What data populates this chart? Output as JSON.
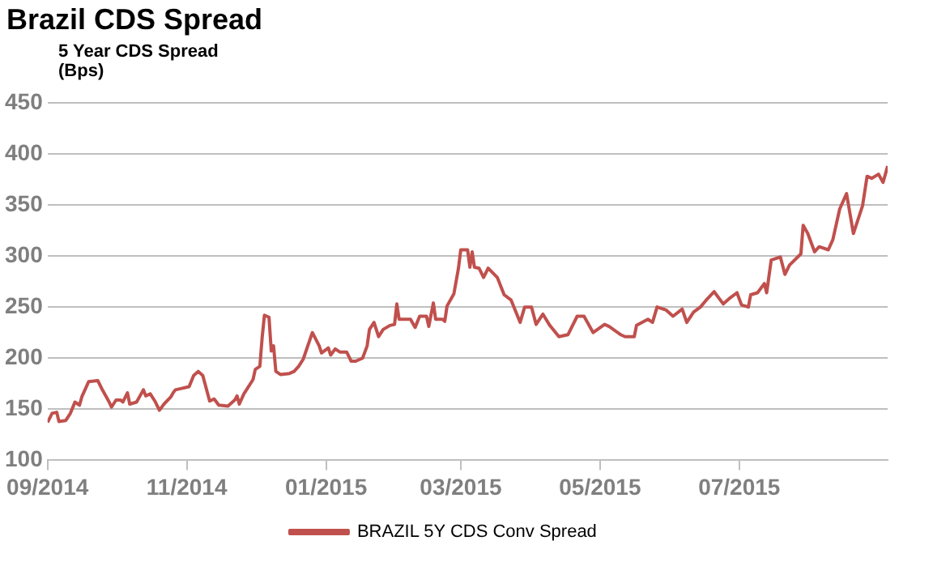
{
  "chart_data": {
    "type": "line",
    "title": "Brazil CDS Spread",
    "ylabel": "5 Year CDS Spread\n(Bps)",
    "x": [
      "2014-09-01",
      "2014-09-03",
      "2014-09-05",
      "2014-09-06",
      "2014-09-09",
      "2014-09-11",
      "2014-09-13",
      "2014-09-15",
      "2014-09-16",
      "2014-09-19",
      "2014-09-23",
      "2014-09-25",
      "2014-09-28",
      "2014-09-29",
      "2014-10-01",
      "2014-10-03",
      "2014-10-04",
      "2014-10-06",
      "2014-10-07",
      "2014-10-10",
      "2014-10-12",
      "2014-10-13",
      "2014-10-14",
      "2014-10-16",
      "2014-10-18",
      "2014-10-20",
      "2014-10-22",
      "2014-10-25",
      "2014-10-26",
      "2014-10-27",
      "2014-10-29",
      "2014-11-02",
      "2014-11-04",
      "2014-11-06",
      "2014-11-08",
      "2014-11-11",
      "2014-11-13",
      "2014-11-15",
      "2014-11-19",
      "2014-11-22",
      "2014-11-23",
      "2014-11-24",
      "2014-11-26",
      "2014-11-30",
      "2014-12-01",
      "2014-12-03",
      "2014-12-04",
      "2014-12-05",
      "2014-12-07",
      "2014-12-08",
      "2014-12-09",
      "2014-12-10",
      "2014-12-12",
      "2014-12-16",
      "2014-12-18",
      "2014-12-20",
      "2014-12-22",
      "2014-12-26",
      "2014-12-29",
      "2014-12-30",
      "2015-01-02",
      "2015-01-03",
      "2015-01-05",
      "2015-01-07",
      "2015-01-10",
      "2015-01-12",
      "2015-01-14",
      "2015-01-17",
      "2015-01-19",
      "2015-01-20",
      "2015-01-22",
      "2015-01-24",
      "2015-01-26",
      "2015-01-29",
      "2015-01-31",
      "2015-02-01",
      "2015-02-02",
      "2015-02-07",
      "2015-02-09",
      "2015-02-11",
      "2015-02-14",
      "2015-02-15",
      "2015-02-17",
      "2015-02-18",
      "2015-02-21",
      "2015-02-22",
      "2015-02-23",
      "2015-02-26",
      "2015-02-28",
      "2015-03-01",
      "2015-03-04",
      "2015-03-05",
      "2015-03-06",
      "2015-03-07",
      "2015-03-09",
      "2015-03-11",
      "2015-03-13",
      "2015-03-17",
      "2015-03-20",
      "2015-03-23",
      "2015-03-27",
      "2015-03-29",
      "2015-04-01",
      "2015-04-03",
      "2015-04-06",
      "2015-04-09",
      "2015-04-13",
      "2015-04-17",
      "2015-04-21",
      "2015-04-24",
      "2015-04-28",
      "2015-05-03",
      "2015-05-05",
      "2015-05-10",
      "2015-05-12",
      "2015-05-16",
      "2015-05-17",
      "2015-05-22",
      "2015-05-24",
      "2015-05-26",
      "2015-05-30",
      "2015-06-02",
      "2015-06-06",
      "2015-06-08",
      "2015-06-11",
      "2015-06-14",
      "2015-06-17",
      "2015-06-20",
      "2015-06-24",
      "2015-06-27",
      "2015-06-30",
      "2015-07-02",
      "2015-07-05",
      "2015-07-06",
      "2015-07-09",
      "2015-07-12",
      "2015-07-13",
      "2015-07-15",
      "2015-07-19",
      "2015-07-21",
      "2015-07-23",
      "2015-07-28",
      "2015-07-29",
      "2015-07-31",
      "2015-08-03",
      "2015-08-05",
      "2015-08-09",
      "2015-08-11",
      "2015-08-14",
      "2015-08-17",
      "2015-08-20",
      "2015-08-24",
      "2015-08-26",
      "2015-08-28",
      "2015-08-31",
      "2015-09-02",
      "2015-09-04"
    ],
    "series": [
      {
        "name": "BRAZIL 5Y CDS Conv Spread",
        "color": "#c0504d",
        "values": [
          137,
          146,
          147,
          138,
          139,
          146,
          157,
          154,
          162,
          177,
          178,
          169,
          157,
          152,
          159,
          159,
          157,
          166,
          155,
          157,
          165,
          169,
          163,
          165,
          158,
          149,
          155,
          162,
          166,
          169,
          170,
          172,
          183,
          187,
          183,
          158,
          160,
          154,
          153,
          159,
          163,
          155,
          165,
          179,
          189,
          192,
          220,
          242,
          240,
          207,
          212,
          187,
          184,
          185,
          187,
          192,
          199,
          225,
          212,
          205,
          210,
          203,
          209,
          206,
          206,
          197,
          197,
          200,
          212,
          228,
          235,
          221,
          228,
          232,
          233,
          253,
          238,
          238,
          230,
          241,
          241,
          231,
          254,
          238,
          238,
          236,
          251,
          263,
          288,
          306,
          306,
          289,
          304,
          289,
          288,
          279,
          288,
          279,
          262,
          257,
          235,
          250,
          250,
          233,
          243,
          232,
          221,
          223,
          241,
          241,
          225,
          233,
          231,
          223,
          221,
          221,
          232,
          238,
          235,
          250,
          247,
          241,
          248,
          235,
          245,
          250,
          258,
          265,
          253,
          259,
          264,
          252,
          250,
          262,
          264,
          273,
          264,
          296,
          299,
          282,
          291,
          302,
          330,
          322,
          304,
          309,
          306,
          316,
          346,
          361,
          322,
          349,
          378,
          376,
          380,
          372,
          388
        ]
      }
    ],
    "xlim": [
      "2014-09-01",
      "2015-09-04"
    ],
    "xticks": [
      {
        "value": "2014-09-01",
        "label": "09/2014"
      },
      {
        "value": "2014-11-01",
        "label": "11/2014"
      },
      {
        "value": "2015-01-01",
        "label": "01/2015"
      },
      {
        "value": "2015-03-01",
        "label": "03/2015"
      },
      {
        "value": "2015-05-01",
        "label": "05/2015"
      },
      {
        "value": "2015-07-01",
        "label": "07/2015"
      }
    ],
    "ylim": [
      100,
      450
    ],
    "yticks": [
      100,
      150,
      200,
      250,
      300,
      350,
      400,
      450
    ],
    "grid": "y",
    "legend": "bottom",
    "marker": "none",
    "line_style": "solid"
  }
}
